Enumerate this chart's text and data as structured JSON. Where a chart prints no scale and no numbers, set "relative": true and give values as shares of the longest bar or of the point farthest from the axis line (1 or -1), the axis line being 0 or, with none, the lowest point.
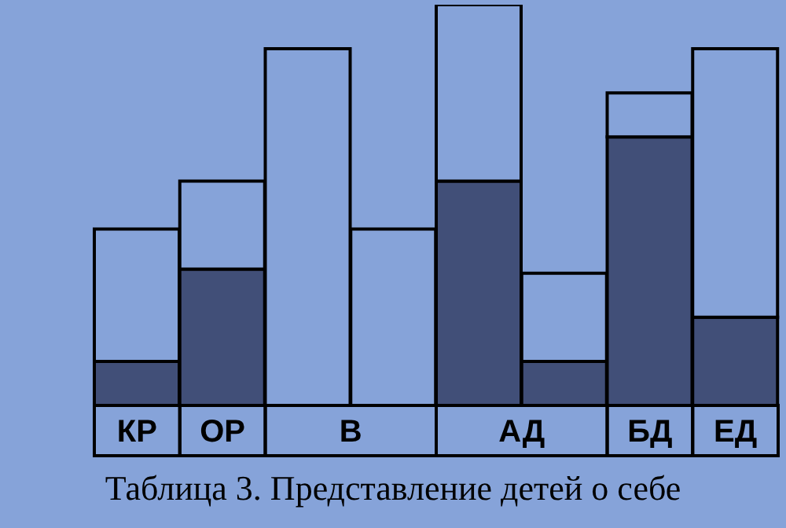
{
  "chart_data": {
    "type": "bar",
    "title": "Таблица 3. Представление детей о себе",
    "relative": true,
    "stacked": true,
    "categories": [
      "КР",
      "ОР",
      "В",
      null,
      "АД",
      null,
      "БД",
      "ЕД"
    ],
    "series": [
      {
        "color": "#414f78",
        "values": [
          0.11,
          0.34,
          0,
          0,
          0.56,
          0.11,
          0.67,
          0.22
        ]
      },
      {
        "color": "#86a3d9",
        "values": [
          0.33,
          0.22,
          0.89,
          0.44,
          0.44,
          0.22,
          0.11,
          0.67
        ]
      }
    ]
  }
}
